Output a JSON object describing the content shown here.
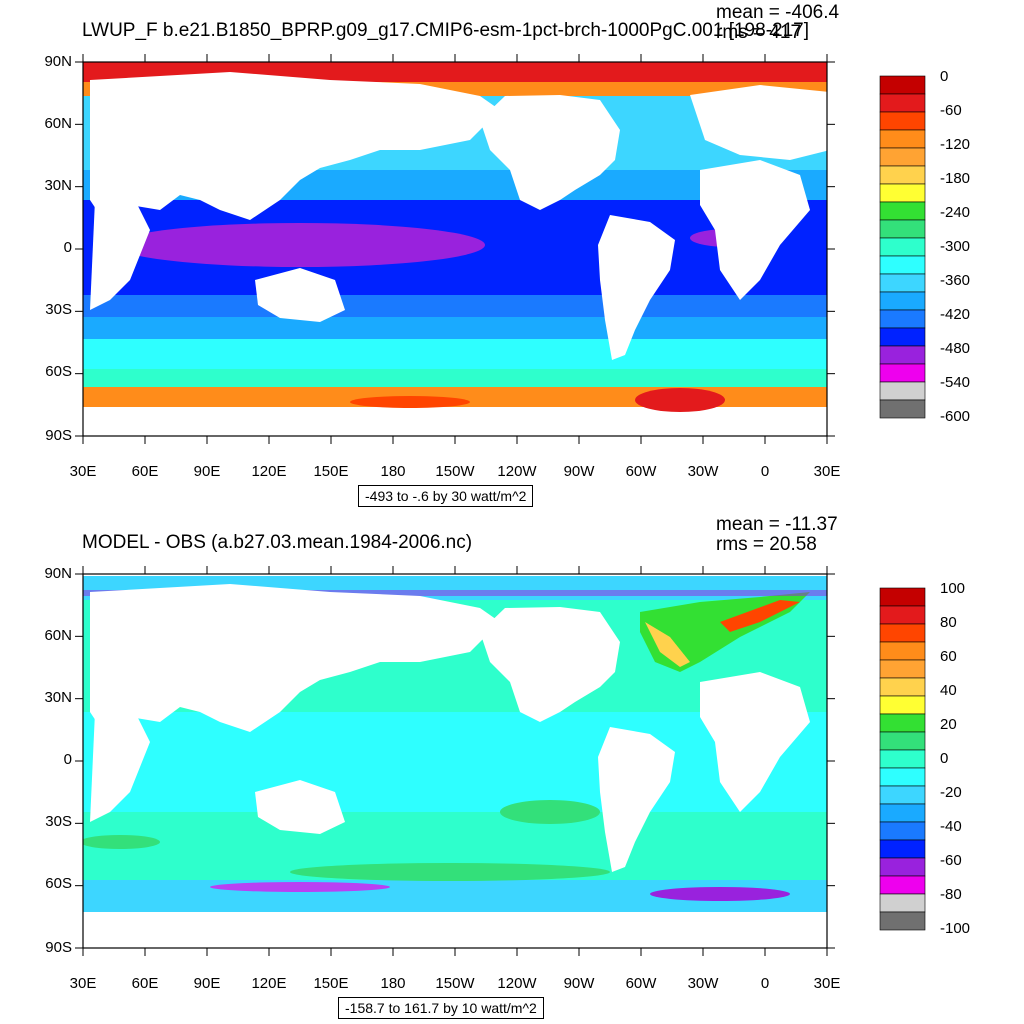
{
  "panels": [
    {
      "title": "LWUP_F b.e21.B1850_BPRP.g09_g17.CMIP6-esm-1pct-brch-1000PgC.001 [198-217]",
      "mean": "mean = -406.4",
      "rms": "rms = 417",
      "range": "-493 to -.6 by 30 watt/m^2",
      "lat_labels": [
        "90N",
        "60N",
        "30N",
        "0",
        "30S",
        "60S",
        "90S"
      ],
      "lon_labels": [
        "30E",
        "60E",
        "90E",
        "120E",
        "150E",
        "180",
        "150W",
        "120W",
        "90W",
        "60W",
        "30W",
        "0",
        "30E"
      ],
      "colorbar_labels": [
        "0",
        "-60",
        "-120",
        "-180",
        "-240",
        "-300",
        "-360",
        "-420",
        "-480",
        "-540",
        "-600"
      ],
      "colorbar_colors": [
        "#c40000",
        "#e31a1c",
        "#ff4500",
        "#ff8c1a",
        "#ffa333",
        "#ffd24d",
        "#ffff33",
        "#33e033",
        "#33e07a",
        "#2effcc",
        "#2effff",
        "#3dd6ff",
        "#1aaaff",
        "#1a7aff",
        "#0022ff",
        "#9922dd",
        "#ee00ee",
        "#d0d0d0",
        "#707070"
      ]
    },
    {
      "title": "MODEL - OBS (a.b27.03.mean.1984-2006.nc)",
      "mean": "mean = -11.37",
      "rms": "rms = 20.58",
      "range": "-158.7 to 161.7 by 10 watt/m^2",
      "lat_labels": [
        "90N",
        "60N",
        "30N",
        "0",
        "30S",
        "60S",
        "90S"
      ],
      "lon_labels": [
        "30E",
        "60E",
        "90E",
        "120E",
        "150E",
        "180",
        "150W",
        "120W",
        "90W",
        "60W",
        "30W",
        "0",
        "30E"
      ],
      "colorbar_labels": [
        "100",
        "80",
        "60",
        "40",
        "20",
        "0",
        "-20",
        "-40",
        "-60",
        "-80",
        "-100"
      ],
      "colorbar_colors": [
        "#c40000",
        "#e31a1c",
        "#ff4500",
        "#ff8c1a",
        "#ffa333",
        "#ffd24d",
        "#ffff33",
        "#33e033",
        "#33e07a",
        "#2effcc",
        "#2effff",
        "#3dd6ff",
        "#1aaaff",
        "#1a7aff",
        "#0022ff",
        "#9922dd",
        "#ee00ee",
        "#d0d0d0",
        "#707070"
      ]
    }
  ]
}
